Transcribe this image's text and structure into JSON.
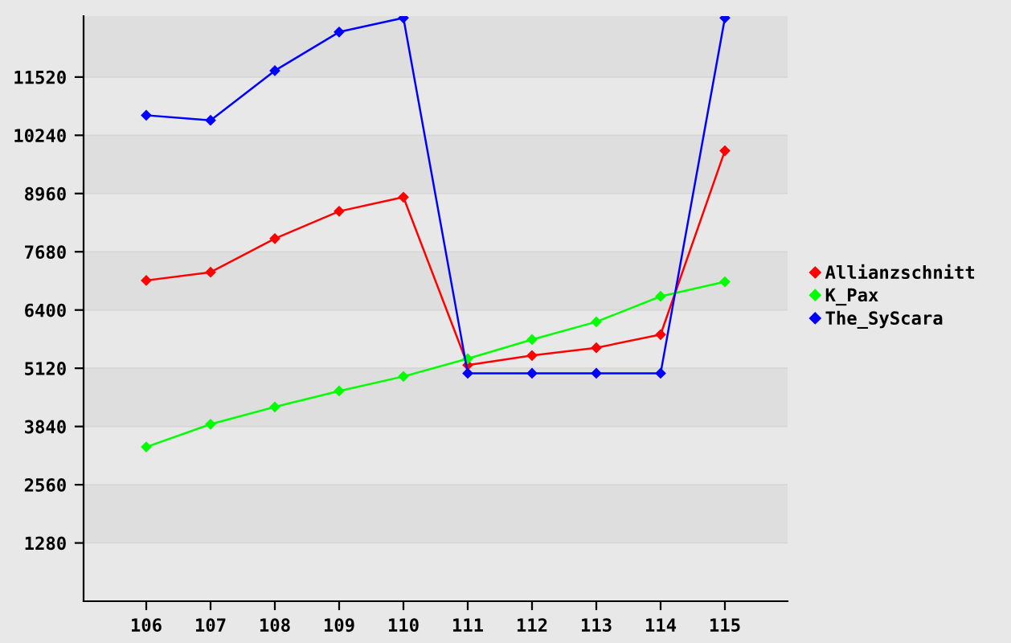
{
  "chart_data": {
    "type": "line",
    "categories": [
      "106",
      "107",
      "108",
      "109",
      "110",
      "111",
      "112",
      "113",
      "114",
      "115"
    ],
    "series": [
      {
        "name": "Allianzschnitt",
        "color": "#ff0000",
        "values": [
          7050,
          7230,
          7970,
          8570,
          8880,
          5190,
          5400,
          5570,
          5860,
          9900
        ]
      },
      {
        "name": "K_Pax",
        "color": "#00ff00",
        "values": [
          3390,
          3890,
          4270,
          4620,
          4940,
          5330,
          5750,
          6140,
          6700,
          7020
        ]
      },
      {
        "name": "The_SyScara",
        "color": "#0000ff",
        "values": [
          10680,
          10570,
          11660,
          12510,
          12820,
          5010,
          5010,
          5010,
          5010,
          12820
        ]
      }
    ],
    "ylim": [
      0,
      12860
    ],
    "yticks": [
      1280,
      2560,
      3840,
      5120,
      6400,
      7680,
      8960,
      10240,
      11520
    ],
    "bands": [
      {
        "axis": "y",
        "from": 1280,
        "to": 2560,
        "color": "#dedede"
      },
      {
        "axis": "y",
        "from": 3840,
        "to": 5120,
        "color": "#dedede"
      },
      {
        "axis": "y",
        "from": 6400,
        "to": 7680,
        "color": "#dedede"
      },
      {
        "axis": "y",
        "from": 8960,
        "to": 10240,
        "color": "#dedede"
      },
      {
        "axis": "y",
        "from": 11520,
        "to": 12860,
        "color": "#dedede"
      }
    ],
    "grid": "y",
    "legend": "right",
    "marker": "diamond",
    "line_style": "solid"
  }
}
